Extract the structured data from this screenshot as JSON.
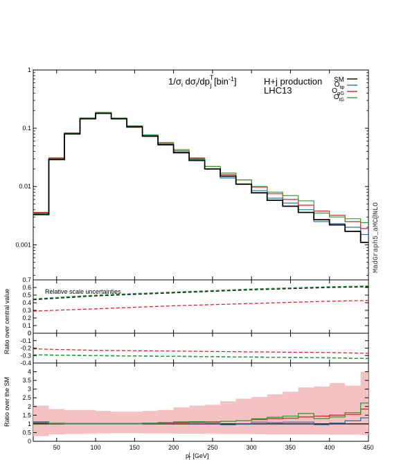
{
  "chart_data": {
    "type": "line",
    "x_edges": [
      20,
      40,
      60,
      80,
      100,
      120,
      140,
      160,
      180,
      200,
      220,
      240,
      260,
      280,
      300,
      320,
      340,
      360,
      380,
      400,
      420,
      440,
      450
    ],
    "xlim": [
      20,
      450
    ],
    "x_ticks": [
      "50",
      "100",
      "150",
      "200",
      "250",
      "300",
      "350",
      "400",
      "450"
    ],
    "x_tick_values": [
      50,
      100,
      150,
      200,
      250,
      300,
      350,
      400,
      450
    ],
    "xlabel": "p",
    "xlabel_sup": "j",
    "xlabel_sub": "T",
    "xlabel_unit": " [GeV]",
    "main_title_prefix": "1/σ",
    "main_title_i": "i",
    "main_title_mid": " dσ",
    "main_title_i2": "i",
    "main_title_dp": "/dp",
    "main_title_T": "T",
    "main_title_j": "j",
    "main_title_unit": " [bin",
    "main_title_exp": "-1",
    "main_title_close": "]",
    "process_label": "H+j production",
    "collider_label": "LHC13",
    "generator_label": "MadGraph5_aMC@NLO",
    "top_panel": {
      "scale": "log",
      "ylim": [
        0.00025,
        1
      ],
      "y_ticks": [
        "1",
        "0.1",
        "0.01",
        "0.001"
      ],
      "y_tick_values": [
        1,
        0.1,
        0.01,
        0.001
      ]
    },
    "legend": [
      {
        "name": "SM",
        "sub": "",
        "color": "#000000"
      },
      {
        "name": "O",
        "sub": "tφ",
        "color": "#1f77b4"
      },
      {
        "name": "O",
        "sub": "φG",
        "color": "#d62728"
      },
      {
        "name": "O",
        "sub": "tG",
        "color": "#2ca02c"
      }
    ],
    "series": [
      {
        "name": "SM",
        "color": "#000000",
        "values": [
          0.0033,
          0.029,
          0.08,
          0.145,
          0.18,
          0.145,
          0.105,
          0.073,
          0.052,
          0.038,
          0.028,
          0.02,
          0.015,
          0.011,
          0.0078,
          0.0058,
          0.0046,
          0.0036,
          0.0027,
          0.0022,
          0.0017,
          0.0011
        ]
      },
      {
        "name": "Otφ",
        "color": "#1f77b4",
        "values": [
          0.0034,
          0.03,
          0.081,
          0.147,
          0.182,
          0.147,
          0.106,
          0.074,
          0.053,
          0.039,
          0.029,
          0.02,
          0.014,
          0.011,
          0.0085,
          0.0063,
          0.0052,
          0.004,
          0.0025,
          0.0023,
          0.002,
          0.0015
        ]
      },
      {
        "name": "OφG",
        "color": "#d62728",
        "values": [
          0.0036,
          0.031,
          0.083,
          0.15,
          0.186,
          0.149,
          0.108,
          0.076,
          0.055,
          0.041,
          0.03,
          0.022,
          0.016,
          0.013,
          0.0098,
          0.0075,
          0.006,
          0.0048,
          0.0038,
          0.0032,
          0.0025,
          0.0019
        ]
      },
      {
        "name": "OtG",
        "color": "#2ca02c",
        "values": [
          0.0035,
          0.03,
          0.082,
          0.15,
          0.186,
          0.15,
          0.11,
          0.077,
          0.057,
          0.043,
          0.031,
          0.022,
          0.017,
          0.013,
          0.01,
          0.008,
          0.007,
          0.0057,
          0.0035,
          0.003,
          0.0028,
          0.0024
        ]
      }
    ],
    "scale_panel_upper": {
      "ylim": [
        0,
        0.7
      ],
      "y_ticks": [
        "0.7",
        "0.6",
        "0.5",
        "0.4",
        "0.3",
        "0.2",
        "0.1",
        "0"
      ],
      "y_tick_values": [
        0.7,
        0.6,
        0.5,
        0.4,
        0.3,
        0.2,
        0.1,
        0
      ],
      "annotation": "Relative scale uncertainties",
      "x": [
        20,
        450
      ],
      "series": [
        {
          "name": "SM",
          "color": "#000000",
          "x": [
            20,
            100,
            200,
            300,
            400,
            450
          ],
          "values": [
            0.44,
            0.49,
            0.53,
            0.57,
            0.6,
            0.61
          ]
        },
        {
          "name": "Otφ",
          "color": "#1f77b4",
          "x": [
            20,
            100,
            200,
            300,
            400,
            450
          ],
          "values": [
            0.45,
            0.5,
            0.54,
            0.58,
            0.61,
            0.62
          ]
        },
        {
          "name": "OφG",
          "color": "#d62728",
          "x": [
            20,
            100,
            200,
            300,
            400,
            450
          ],
          "values": [
            0.29,
            0.32,
            0.36,
            0.39,
            0.42,
            0.43
          ]
        },
        {
          "name": "OtG",
          "color": "#2ca02c",
          "x": [
            20,
            100,
            200,
            300,
            400,
            450
          ],
          "values": [
            0.45,
            0.5,
            0.54,
            0.58,
            0.61,
            0.62
          ]
        }
      ]
    },
    "scale_panel_lower": {
      "ylim": [
        -0.4,
        0
      ],
      "y_ticks": [
        "0",
        "-0.1",
        "-0.2",
        "-0.3",
        "-0.4"
      ],
      "y_tick_values": [
        0,
        -0.1,
        -0.2,
        -0.3,
        -0.4
      ],
      "ylabel": "Ratio over central value",
      "series": [
        {
          "name": "SM",
          "color": "#000000",
          "x": [
            20,
            100,
            200,
            300,
            400,
            450
          ],
          "values": [
            -0.29,
            -0.3,
            -0.31,
            -0.32,
            -0.33,
            -0.34
          ]
        },
        {
          "name": "Otφ",
          "color": "#1f77b4",
          "x": [
            20,
            100,
            200,
            300,
            400,
            450
          ],
          "values": [
            -0.29,
            -0.3,
            -0.31,
            -0.32,
            -0.33,
            -0.34
          ]
        },
        {
          "name": "OφG",
          "color": "#d62728",
          "x": [
            20,
            100,
            200,
            300,
            400,
            450
          ],
          "values": [
            -0.21,
            -0.23,
            -0.24,
            -0.25,
            -0.26,
            -0.27
          ]
        },
        {
          "name": "OtG",
          "color": "#2ca02c",
          "x": [
            20,
            100,
            200,
            300,
            400,
            450
          ],
          "values": [
            -0.29,
            -0.3,
            -0.31,
            -0.32,
            -0.33,
            -0.34
          ]
        }
      ]
    },
    "ratio_panel": {
      "ylim": [
        0,
        4.5
      ],
      "y_ticks": [
        "4",
        "3.5",
        "3",
        "2.5",
        "2",
        "1.5",
        "1",
        "0.5",
        "0"
      ],
      "y_tick_values": [
        4,
        3.5,
        3,
        2.5,
        2,
        1.5,
        1,
        0.5,
        0
      ],
      "ylabel": "Ratio over the SM",
      "band_color": "#f4c2c2",
      "band_upper": [
        2.05,
        1.85,
        1.8,
        1.8,
        1.75,
        1.7,
        1.7,
        1.75,
        1.8,
        1.95,
        2.05,
        2.1,
        2.3,
        2.45,
        2.55,
        2.7,
        2.85,
        3.1,
        3.15,
        3.35,
        3.2,
        4.0
      ],
      "band_lower": [
        0.3,
        0.4,
        0.42,
        0.43,
        0.45,
        0.46,
        0.46,
        0.45,
        0.45,
        0.44,
        0.44,
        0.43,
        0.42,
        0.42,
        0.41,
        0.4,
        0.4,
        0.4,
        0.4,
        0.38,
        0.38,
        0.36
      ],
      "series": [
        {
          "name": "Otφ",
          "color": "#1f77b4",
          "values": [
            1.12,
            1.02,
            1.0,
            1.0,
            1.0,
            1.0,
            1.0,
            1.02,
            1.02,
            1.02,
            1.02,
            1.03,
            0.95,
            0.98,
            1.1,
            1.08,
            1.1,
            1.1,
            0.95,
            1.05,
            1.18,
            1.35
          ]
        },
        {
          "name": "OφG",
          "color": "#d62728",
          "values": [
            1.05,
            1.04,
            1.03,
            1.03,
            1.03,
            1.03,
            1.03,
            1.04,
            1.05,
            1.07,
            1.09,
            1.12,
            1.15,
            1.18,
            1.25,
            1.3,
            1.33,
            1.4,
            1.45,
            1.5,
            1.55,
            1.85
          ]
        },
        {
          "name": "OtG",
          "color": "#2ca02c",
          "values": [
            1.08,
            1.03,
            1.03,
            1.03,
            1.03,
            1.03,
            1.03,
            1.05,
            1.08,
            1.12,
            1.13,
            1.1,
            1.15,
            1.18,
            1.3,
            1.38,
            1.45,
            1.6,
            1.3,
            1.4,
            1.65,
            2.2
          ]
        }
      ]
    }
  }
}
